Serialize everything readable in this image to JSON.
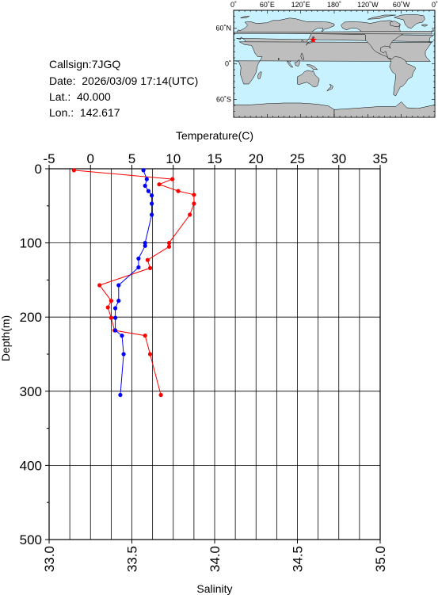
{
  "station": {
    "callsign": "Callsign:7JGQ",
    "date": "Date:  2026/03/09 17:14(UTC)",
    "lat": "Lat.:  40.000",
    "lon": "Lon.:  142.617"
  },
  "map": {
    "top_labels": [
      "0˚",
      "60˚E",
      "120˚E",
      "180˚",
      "120˚W",
      "60˚W",
      "0˚"
    ],
    "side_labels": [
      "60˚N",
      "0˚",
      "60˚S"
    ],
    "ocean_color": "#c8f2ff",
    "land_color": "#bebebe",
    "marker": {
      "lon": 142.617,
      "lat": 40.0,
      "symbol": "star",
      "color": "#ff0000"
    }
  },
  "chart_data": {
    "type": "line",
    "title": "",
    "ylabel": "Depth(m)",
    "ylim": [
      0,
      500
    ],
    "y_inverted": true,
    "y_ticks": [
      0,
      100,
      200,
      300,
      400,
      500
    ],
    "x_top": {
      "label": "Temperature(C)",
      "range": [
        -5,
        35
      ],
      "ticks": [
        -5,
        0,
        5,
        10,
        15,
        20,
        25,
        30,
        35
      ]
    },
    "x_bottom": {
      "label": "Salinity",
      "range": [
        33.0,
        35.0
      ],
      "ticks": [
        "33.0",
        "33.5",
        "34.0",
        "34.5",
        "35.0"
      ]
    },
    "grid": true,
    "series": [
      {
        "axis": "temperature",
        "color": "#ff0000",
        "depth": [
          2,
          14,
          21,
          30,
          35,
          47,
          62,
          100,
          105,
          123,
          134,
          157,
          178,
          187,
          201,
          218,
          225,
          250,
          305
        ],
        "values": [
          -2.0,
          9.9,
          8.3,
          10.6,
          12.5,
          12.5,
          12.0,
          9.5,
          9.5,
          6.9,
          7.2,
          1.1,
          2.5,
          2.1,
          2.5,
          2.9,
          6.6,
          7.2,
          8.5
        ]
      },
      {
        "axis": "salinity",
        "color": "#0000ff",
        "depth": [
          2,
          14,
          23,
          30,
          36,
          47,
          62,
          100,
          104,
          121,
          133,
          157,
          178,
          188,
          201,
          218,
          225,
          250,
          305
        ],
        "values": [
          33.57,
          33.59,
          33.58,
          33.6,
          33.62,
          33.62,
          33.62,
          33.58,
          33.58,
          33.54,
          33.54,
          33.42,
          33.42,
          33.4,
          33.4,
          33.4,
          33.44,
          33.45,
          33.43
        ]
      }
    ]
  }
}
